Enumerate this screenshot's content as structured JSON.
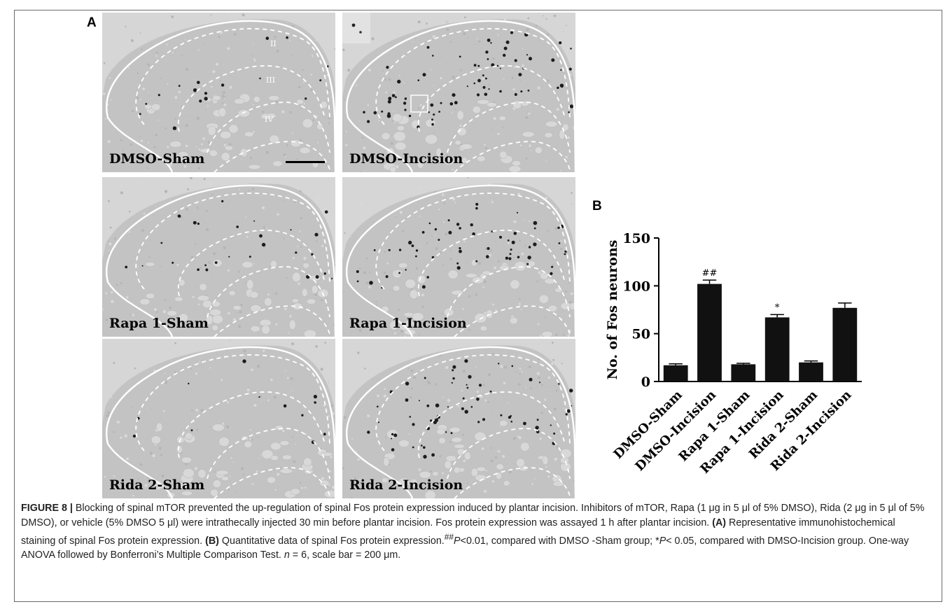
{
  "panel_a_letter": "A",
  "panel_b_letter": "B",
  "micrographs": [
    {
      "label": "DMSO-Sham",
      "laminae": [
        "II",
        "III",
        "IV"
      ],
      "scale_bar": true,
      "inset": false,
      "density": 0.6
    },
    {
      "label": "DMSO-Incision",
      "laminae": [],
      "scale_bar": false,
      "inset": true,
      "density": 2.2
    },
    {
      "label": "Rapa 1-Sham",
      "laminae": [],
      "scale_bar": false,
      "inset": false,
      "density": 0.7
    },
    {
      "label": "Rapa 1-Incision",
      "laminae": [],
      "scale_bar": false,
      "inset": false,
      "density": 1.6
    },
    {
      "label": "Rida 2-Sham",
      "laminae": [],
      "scale_bar": false,
      "inset": false,
      "density": 0.3
    },
    {
      "label": "Rida 2-Incision",
      "laminae": [],
      "scale_bar": false,
      "inset": false,
      "density": 1.8
    }
  ],
  "chart_data": {
    "type": "bar",
    "categories": [
      "DMSO-Sham",
      "DMSO-Incision",
      "Rapa 1-Sham",
      "Rapa 1-Incision",
      "Rida 2-Sham",
      "Rida 2-Incision"
    ],
    "values": [
      17,
      102,
      18,
      67,
      20,
      77
    ],
    "errors": [
      1.5,
      4,
      1,
      3,
      1.5,
      5
    ],
    "annotations": [
      "",
      "##",
      "",
      "*",
      "",
      ""
    ],
    "ylabel": "No. of Fos neurons",
    "ylim": [
      0,
      150
    ],
    "yticks": [
      0,
      50,
      100,
      150
    ],
    "bar_color": "#111111",
    "grid": false
  },
  "caption": {
    "figure_label": "FIGURE 8 |",
    "s1": " Blocking of spinal mTOR prevented the up-regulation of spinal Fos protein expression induced by plantar incision. Inhibitors of mTOR, Rapa (1 μg in 5 μl of 5% DMSO), Rida (2 μg in 5 μl of 5% DMSO), or vehicle (5% DMSO 5 μl) were intrathecally injected 30 min before plantar incision. Fos protein expression was assayed 1 h after plantar incision. ",
    "a_label": "(A)",
    "a_text": " Representative immunohistochemical staining of spinal Fos protein expression. ",
    "b_label": "(B)",
    "b_text": " Quantitative data of spinal Fos protein expression.",
    "sig1_mark": "##",
    "sig1_p": "P",
    "sig1_text": "<0.01, compared with DMSO -Sham group; *",
    "sig2_p": "P",
    "sig2_text": "< 0.05, compared with DMSO-Incision group. One-way ANOVA followed by Bonferroni’s Multiple Comparison Test. ",
    "n_var": "n",
    "n_text": " = 6, scale bar = 200 μm."
  }
}
